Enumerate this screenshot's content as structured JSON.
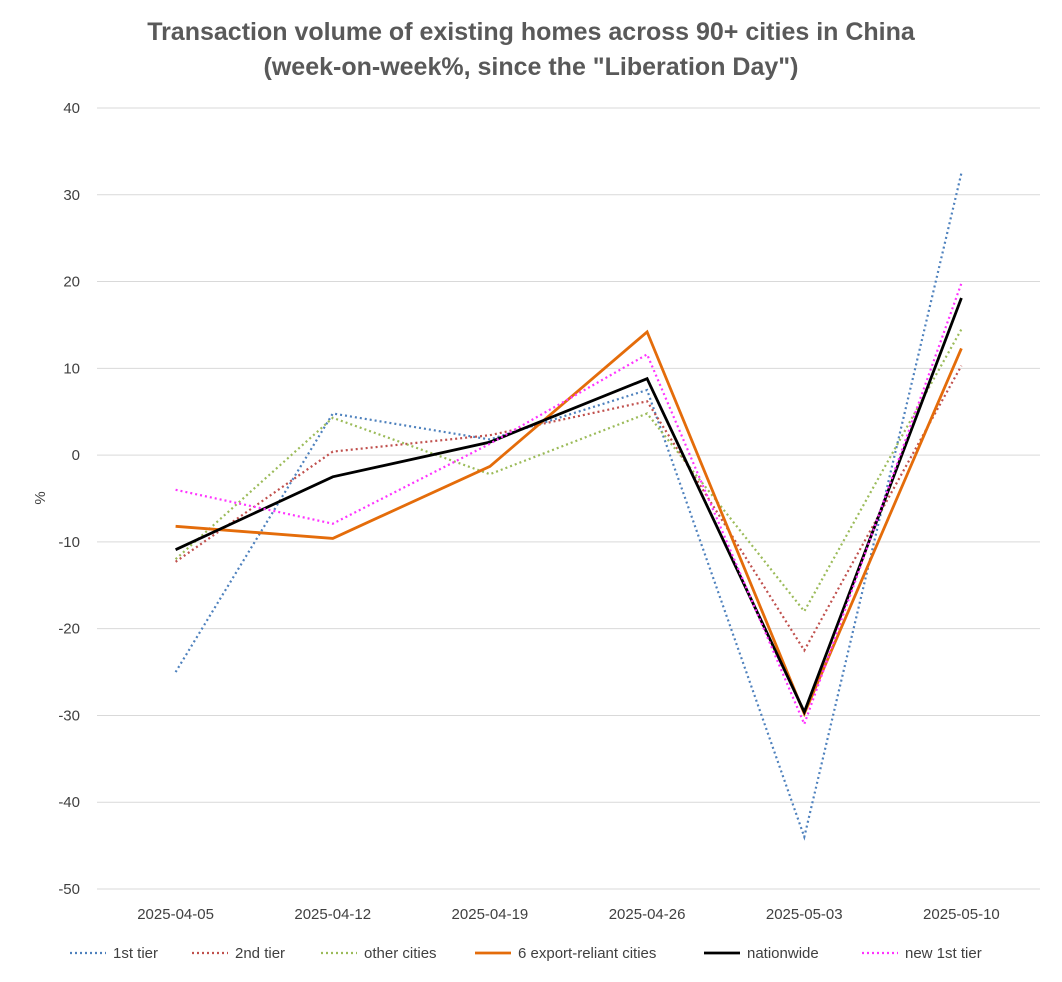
{
  "chart_data": {
    "type": "line",
    "title_lines": [
      "Transaction volume of existing homes across 90+ cities in China",
      "(week-on-week%, since the \"Liberation Day\")"
    ],
    "xlabel": "",
    "ylabel": "%",
    "categories": [
      "2025-04-05",
      "2025-04-12",
      "2025-04-19",
      "2025-04-26",
      "2025-05-03",
      "2025-05-10"
    ],
    "ylim": [
      -50,
      40
    ],
    "yticks": [
      40,
      30,
      20,
      10,
      0,
      -10,
      -20,
      -30,
      -40,
      -50
    ],
    "grid": true,
    "legend_position": "bottom",
    "series": [
      {
        "name": "1st tier",
        "values": [
          -25,
          4.8,
          1.8,
          7.5,
          -44,
          32.5
        ],
        "color": "#4e81bd",
        "style": "dotted"
      },
      {
        "name": "2nd tier",
        "values": [
          -12.3,
          0.4,
          2.3,
          6.2,
          -22.5,
          10.3
        ],
        "color": "#c0504d",
        "style": "dotted"
      },
      {
        "name": "other cities",
        "values": [
          -12,
          4.3,
          -2.2,
          4.8,
          -18,
          14.5
        ],
        "color": "#9bbb59",
        "style": "dotted"
      },
      {
        "name": "6 export-reliant cities",
        "values": [
          -8.2,
          -9.6,
          -1.3,
          14.2,
          -29.8,
          12.3
        ],
        "color": "#e46c0a",
        "style": "solid"
      },
      {
        "name": "nationwide",
        "values": [
          -10.9,
          -2.5,
          1.5,
          8.8,
          -29.6,
          18.1
        ],
        "color": "#000000",
        "style": "solid"
      },
      {
        "name": "new 1st tier",
        "values": [
          -4,
          -7.9,
          1.3,
          11.6,
          -31,
          19.8
        ],
        "color": "#ff33ff",
        "style": "dotted"
      }
    ]
  }
}
